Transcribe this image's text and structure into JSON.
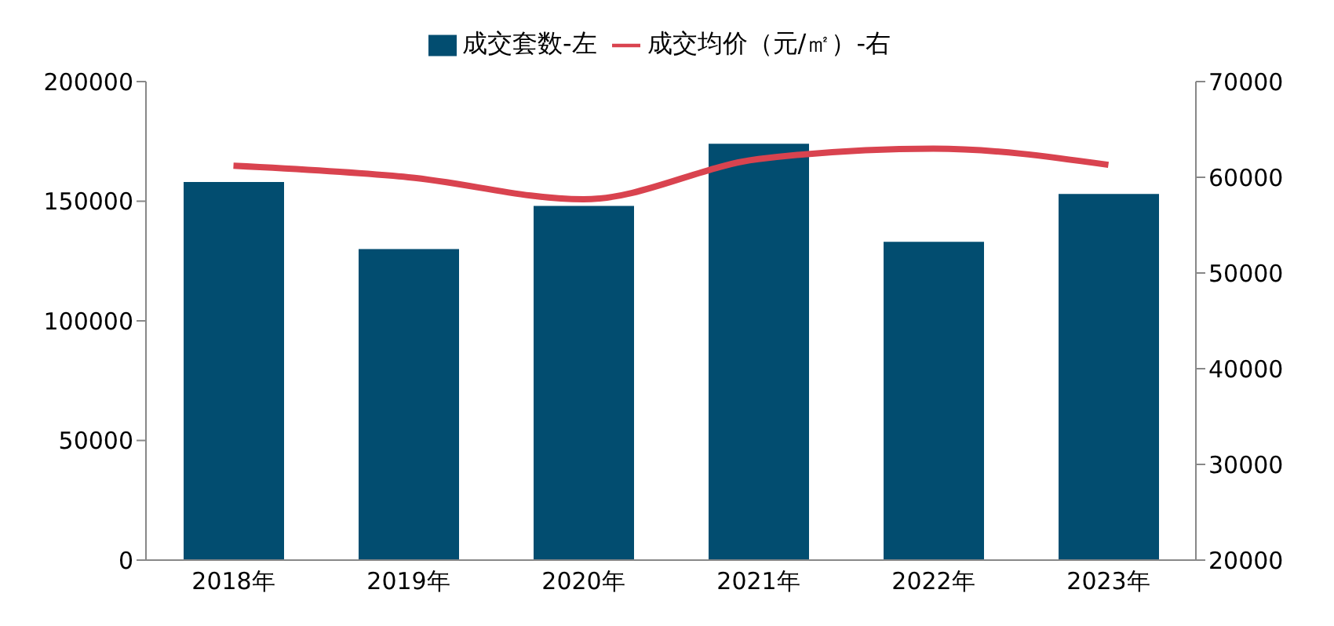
{
  "chart_data": {
    "type": "bar",
    "categories": [
      "2018年",
      "2019年",
      "2020年",
      "2021年",
      "2022年",
      "2023年"
    ],
    "series": [
      {
        "name": "成交套数-左",
        "color": "#024d70",
        "values": [
          158000,
          130000,
          148000,
          174000,
          133000,
          153000
        ]
      },
      {
        "name": "成交均价（元/㎡）-右",
        "type": "line",
        "axis": "y2",
        "color": "#d9434f",
        "marker": "none",
        "values": [
          61200,
          60000,
          57700,
          61900,
          63000,
          61300
        ]
      }
    ],
    "ylim": [
      0,
      200000
    ],
    "yticks": [
      0,
      50000,
      100000,
      150000,
      200000
    ],
    "y2lim": [
      20000,
      70000
    ],
    "y2ticks": [
      20000,
      30000,
      40000,
      50000,
      60000,
      70000
    ],
    "legend": "top"
  }
}
